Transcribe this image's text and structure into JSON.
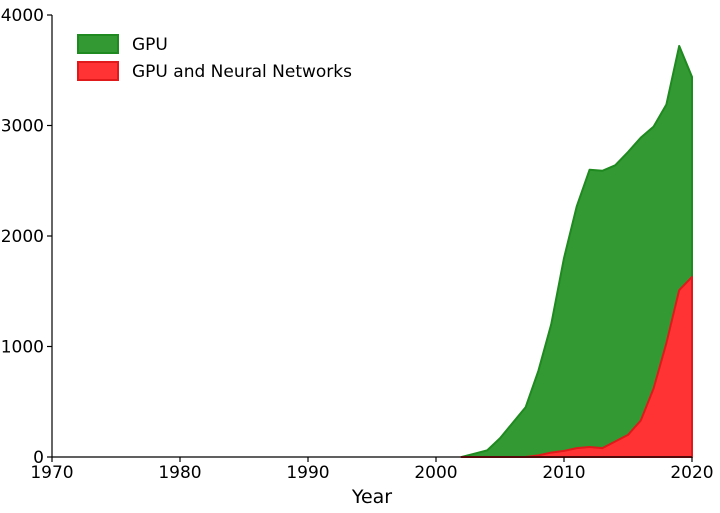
{
  "chart_data": {
    "type": "area",
    "x_label": "Year",
    "x": [
      2002,
      2003,
      2004,
      2005,
      2006,
      2007,
      2008,
      2009,
      2010,
      2011,
      2012,
      2013,
      2014,
      2015,
      2016,
      2017,
      2018,
      2019,
      2020
    ],
    "series": [
      {
        "name": "GPU",
        "color": "#339933",
        "edge": "#1f8a1f",
        "values": [
          0,
          30,
          60,
          170,
          310,
          450,
          780,
          1200,
          1800,
          2270,
          2600,
          2590,
          2640,
          2760,
          2890,
          2990,
          3190,
          3720,
          3440
        ]
      },
      {
        "name": "GPU and Neural Networks",
        "color": "#ff3333",
        "edge": "#e01a1a",
        "values": [
          0,
          0,
          0,
          0,
          0,
          0,
          15,
          40,
          55,
          80,
          90,
          80,
          140,
          200,
          330,
          620,
          1030,
          1510,
          1630
        ]
      }
    ],
    "xlim": [
      1970,
      2020
    ],
    "xticks": [
      1970,
      1980,
      1990,
      2000,
      2010,
      2020
    ],
    "ylim": [
      0,
      4000
    ],
    "yticks": [
      0,
      1000,
      2000,
      3000,
      4000
    ],
    "legend": "upper left"
  }
}
